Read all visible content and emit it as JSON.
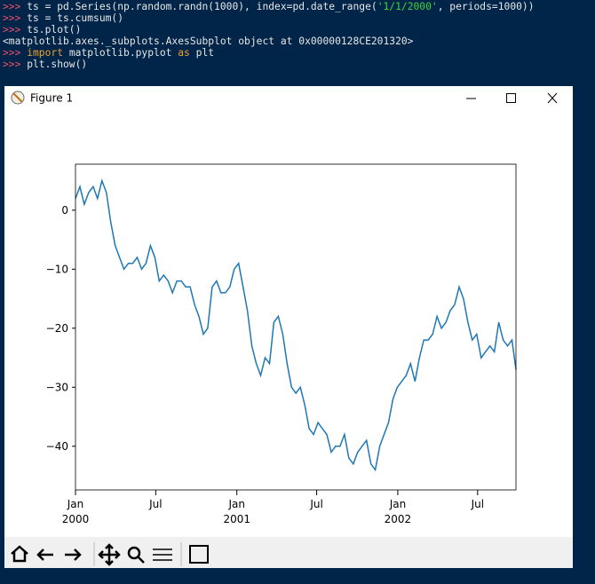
{
  "terminal": {
    "lines": [
      {
        "prompt": ">>>",
        "code": "ts = pd.Series(np.random.randn(1000), index=pd.date_range(",
        "string": "'1/1/2000'",
        "rest": ", periods=1000))"
      },
      {
        "prompt": ">>>",
        "code": "ts = ts.cumsum()"
      },
      {
        "prompt": ">>>",
        "code": "ts.plot()"
      },
      {
        "output": "<matplotlib.axes._subplots.AxesSubplot object at 0x00000128CE201320>"
      },
      {
        "prompt": ">>>",
        "keyword": "import",
        "code": "matplotlib.pyplot",
        "keyword2": "as",
        "rest": "plt"
      },
      {
        "prompt": ">>>",
        "code": "plt.show()"
      }
    ]
  },
  "window": {
    "title": "Figure 1"
  },
  "chart_data": {
    "type": "line",
    "color": "#1f77b4",
    "x": [
      0,
      10,
      20,
      30,
      40,
      50,
      60,
      70,
      80,
      90,
      100,
      110,
      120,
      130,
      140,
      150,
      160,
      170,
      180,
      190,
      200,
      210,
      220,
      230,
      240,
      250,
      260,
      270,
      280,
      290,
      300,
      310,
      320,
      330,
      340,
      350,
      360,
      370,
      380,
      390,
      400,
      410,
      420,
      430,
      440,
      450,
      460,
      470,
      480,
      490,
      500,
      510,
      520,
      530,
      540,
      550,
      560,
      570,
      580,
      590,
      600,
      610,
      620,
      630,
      640,
      650,
      660,
      670,
      680,
      690,
      700,
      710,
      720,
      730,
      740,
      750,
      760,
      770,
      780,
      790,
      800,
      810,
      820,
      830,
      840,
      850,
      860,
      870,
      880,
      890,
      900,
      910,
      920,
      930,
      940,
      950,
      960,
      970,
      980,
      990,
      999
    ],
    "values": [
      2,
      4,
      1,
      3,
      4,
      2,
      5,
      3,
      -2,
      -6,
      -8,
      -10,
      -9,
      -9,
      -8,
      -10,
      -9,
      -6,
      -8,
      -12,
      -11,
      -12,
      -14,
      -12,
      -12,
      -13,
      -13,
      -16,
      -18,
      -21,
      -20,
      -13,
      -12,
      -14,
      -14,
      -13,
      -10,
      -9,
      -13,
      -17,
      -23,
      -26,
      -28,
      -25,
      -26,
      -19,
      -18,
      -21,
      -26,
      -30,
      -31,
      -30,
      -33,
      -37,
      -38,
      -36,
      -37,
      -38,
      -41,
      -40,
      -40,
      -38,
      -42,
      -43,
      -41,
      -40,
      -39,
      -43,
      -44,
      -40,
      -38,
      -36,
      -32,
      -30,
      -29,
      -28,
      -26,
      -29,
      -25,
      -22,
      -22,
      -21,
      -18,
      -20,
      -19,
      -17,
      -16,
      -13,
      -15,
      -19,
      -22,
      -21,
      -25,
      -24,
      -23,
      -24,
      -19,
      -22,
      -23,
      -22,
      -27
    ],
    "xlim": [
      0,
      999
    ],
    "xticks": [
      {
        "value": 0,
        "label": "Jan",
        "sublabel": "2000"
      },
      {
        "value": 182,
        "label": "Jul"
      },
      {
        "value": 366,
        "label": "Jan",
        "sublabel": "2001"
      },
      {
        "value": 547,
        "label": "Jul"
      },
      {
        "value": 731,
        "label": "Jan",
        "sublabel": "2002"
      },
      {
        "value": 912,
        "label": "Jul"
      }
    ],
    "ylim": [
      -47.4,
      7.8
    ],
    "yticks": [
      0,
      {
        "value": -10,
        "label": "−10"
      },
      {
        "value": -20,
        "label": "−20"
      },
      {
        "value": -30,
        "label": "−30"
      },
      {
        "value": -40,
        "label": "−40"
      }
    ]
  }
}
